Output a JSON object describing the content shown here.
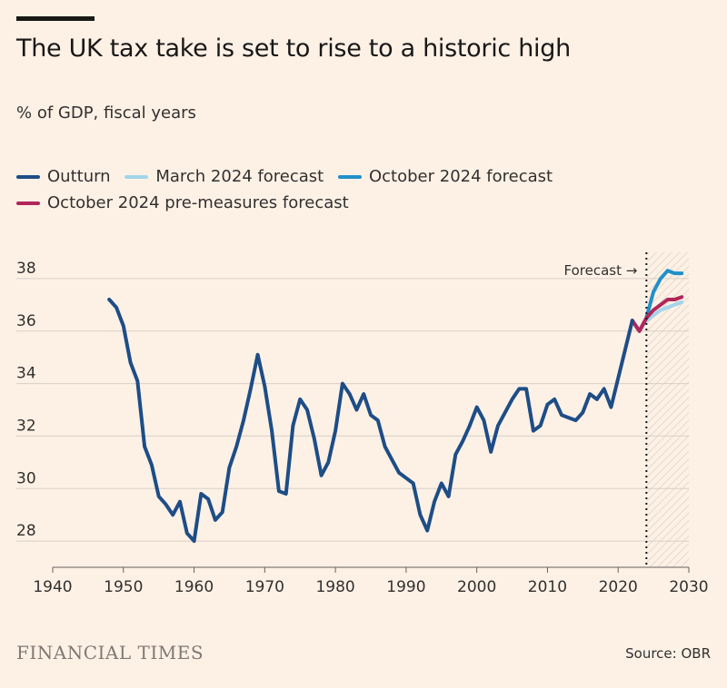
{
  "header": {
    "title": "The UK tax take is set to rise to a historic high",
    "subtitle": "% of GDP, fiscal years"
  },
  "footer": {
    "brand": "FINANCIAL TIMES",
    "source": "Source: OBR"
  },
  "colors": {
    "background": "#fdf1e6",
    "outturn": "#1e4d86",
    "march_2024": "#a3d5ea",
    "october_2024": "#2090cb",
    "pre_measures": "#b0265a",
    "grid": "#d9cfc6",
    "axis": "#66605c"
  },
  "chart_data": {
    "type": "line",
    "title": "The UK tax take is set to rise to a historic high",
    "ylabel": "% of GDP, fiscal years",
    "xlim": [
      1940,
      2030
    ],
    "ylim": [
      27,
      39
    ],
    "xticks": [
      1940,
      1950,
      1960,
      1970,
      1980,
      1990,
      2000,
      2010,
      2020,
      2030
    ],
    "yticks": [
      28,
      30,
      32,
      34,
      36,
      38
    ],
    "grid": "horizontal",
    "legend_position": "top-left",
    "forecast_start": 2024,
    "annotation": "Forecast →",
    "series": [
      {
        "name": "Outturn",
        "color": "#1e4d86",
        "points": [
          [
            1948,
            37.2
          ],
          [
            1949,
            36.9
          ],
          [
            1950,
            36.2
          ],
          [
            1951,
            34.8
          ],
          [
            1952,
            34.1
          ],
          [
            1953,
            31.6
          ],
          [
            1954,
            30.9
          ],
          [
            1955,
            29.7
          ],
          [
            1956,
            29.4
          ],
          [
            1957,
            29.0
          ],
          [
            1958,
            29.5
          ],
          [
            1959,
            28.3
          ],
          [
            1960,
            28.0
          ],
          [
            1961,
            29.8
          ],
          [
            1962,
            29.6
          ],
          [
            1963,
            28.8
          ],
          [
            1964,
            29.1
          ],
          [
            1965,
            30.8
          ],
          [
            1966,
            31.6
          ],
          [
            1967,
            32.6
          ],
          [
            1968,
            33.8
          ],
          [
            1969,
            35.1
          ],
          [
            1970,
            33.9
          ],
          [
            1971,
            32.2
          ],
          [
            1972,
            29.9
          ],
          [
            1973,
            29.8
          ],
          [
            1974,
            32.4
          ],
          [
            1975,
            33.4
          ],
          [
            1976,
            33.0
          ],
          [
            1977,
            31.9
          ],
          [
            1978,
            30.5
          ],
          [
            1979,
            31.0
          ],
          [
            1980,
            32.2
          ],
          [
            1981,
            34.0
          ],
          [
            1982,
            33.6
          ],
          [
            1983,
            33.0
          ],
          [
            1984,
            33.6
          ],
          [
            1985,
            32.8
          ],
          [
            1986,
            32.6
          ],
          [
            1987,
            31.6
          ],
          [
            1988,
            31.1
          ],
          [
            1989,
            30.6
          ],
          [
            1990,
            30.4
          ],
          [
            1991,
            30.2
          ],
          [
            1992,
            29.0
          ],
          [
            1993,
            28.4
          ],
          [
            1994,
            29.5
          ],
          [
            1995,
            30.2
          ],
          [
            1996,
            29.7
          ],
          [
            1997,
            31.3
          ],
          [
            1998,
            31.8
          ],
          [
            1999,
            32.4
          ],
          [
            2000,
            33.1
          ],
          [
            2001,
            32.6
          ],
          [
            2002,
            31.4
          ],
          [
            2003,
            32.4
          ],
          [
            2004,
            32.9
          ],
          [
            2005,
            33.4
          ],
          [
            2006,
            33.8
          ],
          [
            2007,
            33.8
          ],
          [
            2008,
            32.2
          ],
          [
            2009,
            32.4
          ],
          [
            2010,
            33.2
          ],
          [
            2011,
            33.4
          ],
          [
            2012,
            32.8
          ],
          [
            2013,
            32.7
          ],
          [
            2014,
            32.6
          ],
          [
            2015,
            32.9
          ],
          [
            2016,
            33.6
          ],
          [
            2017,
            33.4
          ],
          [
            2018,
            33.8
          ],
          [
            2019,
            33.1
          ],
          [
            2020,
            34.2
          ],
          [
            2021,
            35.3
          ],
          [
            2022,
            36.4
          ]
        ]
      },
      {
        "name": "March 2024 forecast",
        "color": "#a3d5ea",
        "points": [
          [
            2022,
            36.4
          ],
          [
            2023,
            36.0
          ],
          [
            2024,
            36.4
          ],
          [
            2025,
            36.6
          ],
          [
            2026,
            36.8
          ],
          [
            2027,
            36.9
          ],
          [
            2028,
            37.0
          ],
          [
            2029,
            37.1
          ]
        ]
      },
      {
        "name": "October 2024 forecast",
        "color": "#2090cb",
        "points": [
          [
            2022,
            36.4
          ],
          [
            2023,
            36.0
          ],
          [
            2024,
            36.5
          ],
          [
            2025,
            37.5
          ],
          [
            2026,
            38.0
          ],
          [
            2027,
            38.3
          ],
          [
            2028,
            38.2
          ],
          [
            2029,
            38.2
          ]
        ]
      },
      {
        "name": "October 2024 pre-measures forecast",
        "color": "#b0265a",
        "points": [
          [
            2022,
            36.4
          ],
          [
            2023,
            36.0
          ],
          [
            2024,
            36.5
          ],
          [
            2025,
            36.8
          ],
          [
            2026,
            37.0
          ],
          [
            2027,
            37.2
          ],
          [
            2028,
            37.2
          ],
          [
            2029,
            37.3
          ]
        ]
      }
    ]
  }
}
